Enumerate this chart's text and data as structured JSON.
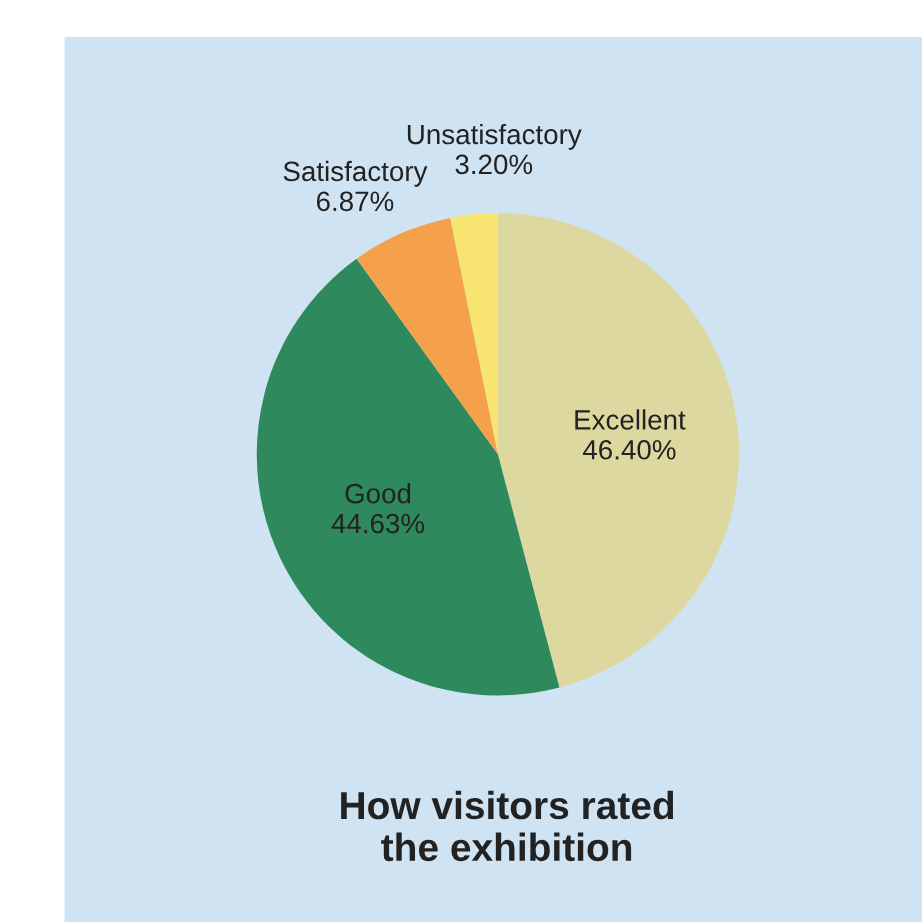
{
  "chart_data": {
    "type": "pie",
    "title": "How visitors rated\nthe exhibition",
    "categories": [
      "Excellent",
      "Good",
      "Satisfactory",
      "Unsatisfactory"
    ],
    "values": [
      46.4,
      44.63,
      6.87,
      3.2
    ],
    "value_labels": [
      "46.40%",
      "44.63%",
      "6.87%",
      "3.20%"
    ],
    "colors": [
      "#dcd8a0",
      "#2e8a5c",
      "#f5a04a",
      "#f8e470"
    ]
  }
}
